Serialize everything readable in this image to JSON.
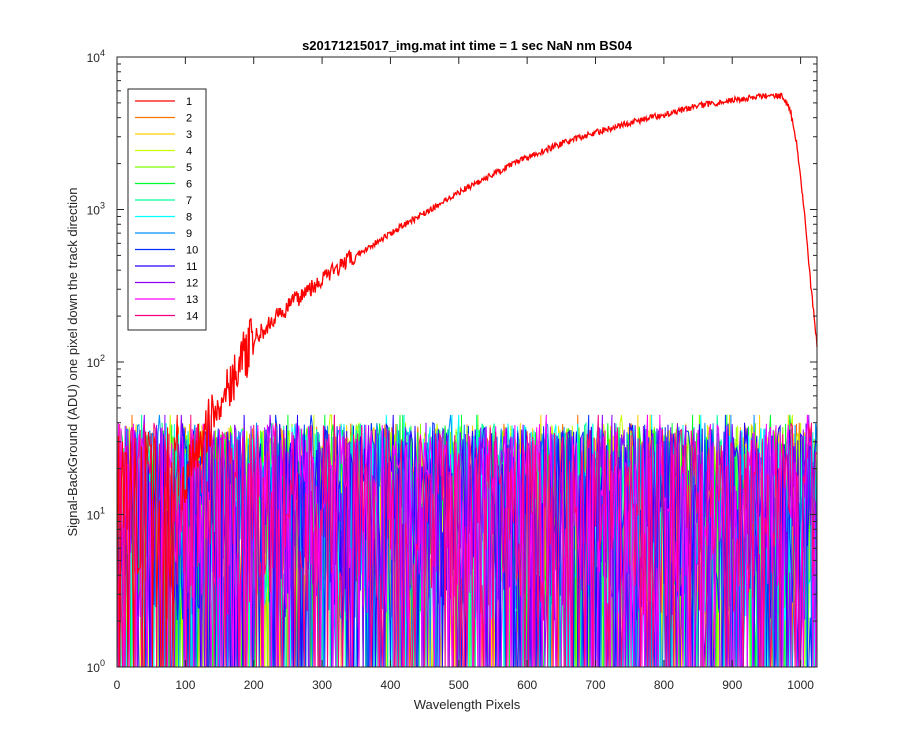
{
  "chart_data": {
    "type": "line",
    "title": "s20171215017_img.mat int time = 1 sec  NaN nm BS04",
    "xlabel": "Wavelength Pixels",
    "ylabel": "Signal-BackGround (ADU) one pixel down the track direction",
    "xlim": [
      0,
      1024
    ],
    "ylim": [
      1,
      10000
    ],
    "yscale": "log",
    "xticks": [
      0,
      100,
      200,
      300,
      400,
      500,
      600,
      700,
      800,
      900,
      1000
    ],
    "yticks": [
      {
        "base": "10",
        "exp": "0"
      },
      {
        "base": "10",
        "exp": "1"
      },
      {
        "base": "10",
        "exp": "2"
      },
      {
        "base": "10",
        "exp": "3"
      },
      {
        "base": "10",
        "exp": "4"
      }
    ],
    "legend_position": "top-left",
    "series": [
      {
        "name": "1",
        "color": "#ff0000",
        "x": [
          95,
          110,
          130,
          150,
          175,
          200,
          225,
          250,
          275,
          300,
          350,
          400,
          450,
          500,
          550,
          600,
          650,
          700,
          750,
          800,
          850,
          900,
          940,
          960,
          975,
          985,
          995,
          1005,
          1015,
          1024
        ],
        "y": [
          15,
          22,
          35,
          55,
          90,
          140,
          180,
          230,
          290,
          350,
          500,
          700,
          950,
          1300,
          1700,
          2200,
          2700,
          3200,
          3700,
          4200,
          4800,
          5200,
          5500,
          5650,
          5500,
          4500,
          2600,
          1000,
          320,
          130
        ]
      },
      {
        "name": "2",
        "color": "#ff7300"
      },
      {
        "name": "3",
        "color": "#ffcf00"
      },
      {
        "name": "4",
        "color": "#c8ff00"
      },
      {
        "name": "5",
        "color": "#7fff00"
      },
      {
        "name": "6",
        "color": "#00ff28"
      },
      {
        "name": "7",
        "color": "#00ff9c"
      },
      {
        "name": "8",
        "color": "#00ffff"
      },
      {
        "name": "9",
        "color": "#008fff"
      },
      {
        "name": "10",
        "color": "#0030ff"
      },
      {
        "name": "11",
        "color": "#2800ff"
      },
      {
        "name": "12",
        "color": "#8f00ff"
      },
      {
        "name": "13",
        "color": "#ff00ff"
      },
      {
        "name": "14",
        "color": "#ff0080"
      }
    ]
  }
}
